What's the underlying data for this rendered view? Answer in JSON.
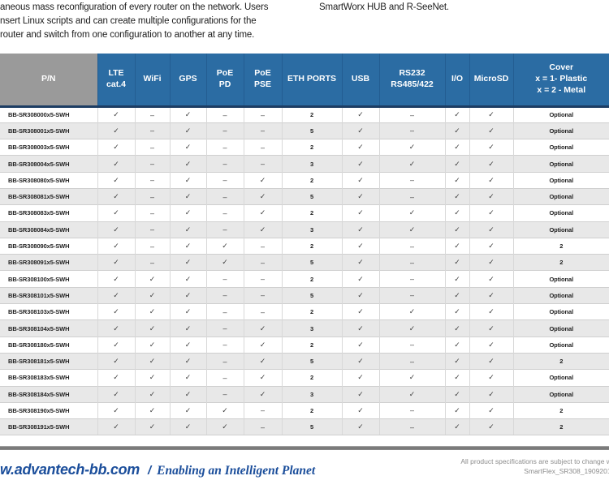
{
  "intro": {
    "left_lines": [
      "aneous mass reconfiguration of every router on the network. Users",
      "nsert Linux scripts and can create multiple configurations for the",
      "router and switch from one configuration to another at any time."
    ],
    "right_text": "SmartWorx HUB and R-SeeNet."
  },
  "table": {
    "columns": [
      "P/N",
      "LTE\ncat.4",
      "WiFi",
      "GPS",
      "PoE\nPD",
      "PoE\nPSE",
      "ETH PORTS",
      "USB",
      "RS232\nRS485/422",
      "I/O",
      "MicroSD",
      "Cover\nx = 1- Plastic\nx = 2 - Metal"
    ],
    "rows": [
      {
        "pn": "BB-SR308000x5-SWH",
        "cells": [
          "✓",
          "–",
          "✓",
          "–",
          "–",
          "2",
          "✓",
          "–",
          "✓",
          "✓",
          "Optional"
        ]
      },
      {
        "pn": "BB-SR308001x5-SWH",
        "cells": [
          "✓",
          "–",
          "✓",
          "–",
          "–",
          "5",
          "✓",
          "–",
          "✓",
          "✓",
          "Optional"
        ]
      },
      {
        "pn": "BB-SR308003x5-SWH",
        "cells": [
          "✓",
          "–",
          "✓",
          "–",
          "–",
          "2",
          "✓",
          "✓",
          "✓",
          "✓",
          "Optional"
        ]
      },
      {
        "pn": "BB-SR308004x5-SWH",
        "cells": [
          "✓",
          "–",
          "✓",
          "–",
          "–",
          "3",
          "✓",
          "✓",
          "✓",
          "✓",
          "Optional"
        ]
      },
      {
        "pn": "BB-SR308080x5-SWH",
        "cells": [
          "✓",
          "–",
          "✓",
          "–",
          "✓",
          "2",
          "✓",
          "–",
          "✓",
          "✓",
          "Optional"
        ]
      },
      {
        "pn": "BB-SR308081x5-SWH",
        "cells": [
          "✓",
          "–",
          "✓",
          "–",
          "✓",
          "5",
          "✓",
          "–",
          "✓",
          "✓",
          "Optional"
        ]
      },
      {
        "pn": "BB-SR308083x5-SWH",
        "cells": [
          "✓",
          "–",
          "✓",
          "–",
          "✓",
          "2",
          "✓",
          "✓",
          "✓",
          "✓",
          "Optional"
        ]
      },
      {
        "pn": "BB-SR308084x5-SWH",
        "cells": [
          "✓",
          "–",
          "✓",
          "–",
          "✓",
          "3",
          "✓",
          "✓",
          "✓",
          "✓",
          "Optional"
        ]
      },
      {
        "pn": "BB-SR308090x5-SWH",
        "cells": [
          "✓",
          "–",
          "✓",
          "✓",
          "–",
          "2",
          "✓",
          "–",
          "✓",
          "✓",
          "2"
        ]
      },
      {
        "pn": "BB-SR308091x5-SWH",
        "cells": [
          "✓",
          "–",
          "✓",
          "✓",
          "–",
          "5",
          "✓",
          "–",
          "✓",
          "✓",
          "2"
        ]
      },
      {
        "pn": "BB-SR308100x5-SWH",
        "cells": [
          "✓",
          "✓",
          "✓",
          "–",
          "–",
          "2",
          "✓",
          "–",
          "✓",
          "✓",
          "Optional"
        ]
      },
      {
        "pn": "BB-SR308101x5-SWH",
        "cells": [
          "✓",
          "✓",
          "✓",
          "–",
          "–",
          "5",
          "✓",
          "–",
          "✓",
          "✓",
          "Optional"
        ]
      },
      {
        "pn": "BB-SR308103x5-SWH",
        "cells": [
          "✓",
          "✓",
          "✓",
          "–",
          "–",
          "2",
          "✓",
          "✓",
          "✓",
          "✓",
          "Optional"
        ]
      },
      {
        "pn": "BB-SR308104x5-SWH",
        "cells": [
          "✓",
          "✓",
          "✓",
          "–",
          "✓",
          "3",
          "✓",
          "✓",
          "✓",
          "✓",
          "Optional"
        ]
      },
      {
        "pn": "BB-SR308180x5-SWH",
        "cells": [
          "✓",
          "✓",
          "✓",
          "–",
          "✓",
          "2",
          "✓",
          "–",
          "✓",
          "✓",
          "Optional"
        ]
      },
      {
        "pn": "BB-SR308181x5-SWH",
        "cells": [
          "✓",
          "✓",
          "✓",
          "–",
          "✓",
          "5",
          "✓",
          "–",
          "✓",
          "✓",
          "2"
        ]
      },
      {
        "pn": "BB-SR308183x5-SWH",
        "cells": [
          "✓",
          "✓",
          "✓",
          "–",
          "✓",
          "2",
          "✓",
          "✓",
          "✓",
          "✓",
          "Optional"
        ]
      },
      {
        "pn": "BB-SR308184x5-SWH",
        "cells": [
          "✓",
          "✓",
          "✓",
          "–",
          "✓",
          "3",
          "✓",
          "✓",
          "✓",
          "✓",
          "Optional"
        ]
      },
      {
        "pn": "BB-SR308190x5-SWH",
        "cells": [
          "✓",
          "✓",
          "✓",
          "✓",
          "–",
          "2",
          "✓",
          "–",
          "✓",
          "✓",
          "2"
        ]
      },
      {
        "pn": "BB-SR308191x5-SWH",
        "cells": [
          "✓",
          "✓",
          "✓",
          "✓",
          "–",
          "5",
          "✓",
          "–",
          "✓",
          "✓",
          "2"
        ]
      }
    ]
  },
  "footer": {
    "website": "w.advantech-bb.com",
    "separator": "/",
    "tagline": "Enabling an Intelligent Planet",
    "note_line1": "All product specifications are subject to change with",
    "note_line2": "SmartFlex_SR308_19092017d"
  },
  "colors": {
    "header_blue": "#2b6ca3",
    "header_gray": "#9a9a9a",
    "header_navy_line": "#1d3d63",
    "stripe_gray": "#e8e8e8",
    "footer_blue": "#1b4e9b"
  }
}
